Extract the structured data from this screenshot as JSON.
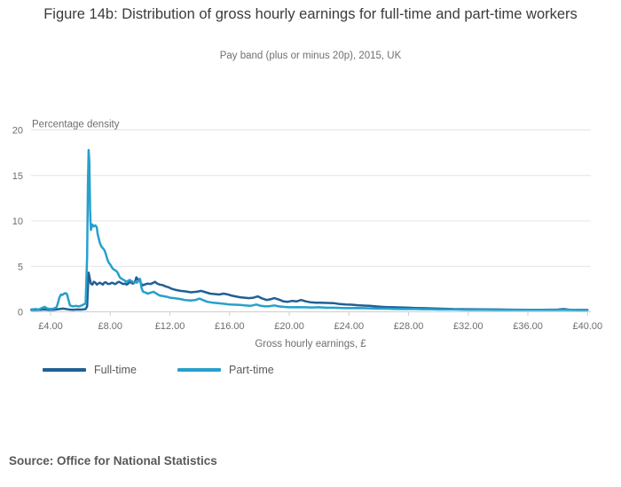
{
  "figure": {
    "title": "Figure 14b: Distribution of gross hourly earnings for full-time and part-time workers",
    "subtitle": "Pay band (plus or minus 20p), 2015, UK",
    "source": "Source: Office for National Statistics"
  },
  "chart_data": {
    "type": "line",
    "title": "Figure 14b: Distribution of gross hourly earnings for full-time and part-time workers",
    "subtitle": "Pay band (plus or minus 20p), 2015, UK",
    "xlabel": "Gross hourly earnings, £",
    "ylabel": "Percentage density",
    "xlim": [
      2.69,
      40.22
    ],
    "ylim": [
      0,
      20
    ],
    "grid": true,
    "legend_position": "bottom-left",
    "xticks": [
      4,
      8,
      12,
      16,
      20,
      24,
      28,
      32,
      36,
      40
    ],
    "xtick_labels": [
      "£4.00",
      "£8.00",
      "£12.00",
      "£16.00",
      "£20.00",
      "£24.00",
      "£28.00",
      "£32.00",
      "£36.00",
      "£40.00"
    ],
    "yticks": [
      0,
      5,
      10,
      15,
      20
    ],
    "colors": {
      "grid": "#e4e4e4",
      "axis": "#cfcfcf",
      "tick_text": "#6e6e6e",
      "axis_title_text": "#6e6e6e"
    },
    "series": [
      {
        "name": "Full-time",
        "color": "#206095",
        "points": [
          [
            2.7,
            0.2
          ],
          [
            3.0,
            0.2
          ],
          [
            3.3,
            0.22
          ],
          [
            3.6,
            0.25
          ],
          [
            3.9,
            0.2
          ],
          [
            4.2,
            0.22
          ],
          [
            4.5,
            0.28
          ],
          [
            4.8,
            0.35
          ],
          [
            5.0,
            0.32
          ],
          [
            5.2,
            0.25
          ],
          [
            5.5,
            0.22
          ],
          [
            5.8,
            0.25
          ],
          [
            6.0,
            0.24
          ],
          [
            6.2,
            0.26
          ],
          [
            6.35,
            0.3
          ],
          [
            6.45,
            0.6
          ],
          [
            6.5,
            2.6
          ],
          [
            6.55,
            4.3
          ],
          [
            6.6,
            3.9
          ],
          [
            6.7,
            3.1
          ],
          [
            6.8,
            3.0
          ],
          [
            6.9,
            3.3
          ],
          [
            7.0,
            3.2
          ],
          [
            7.1,
            3.0
          ],
          [
            7.2,
            3.1
          ],
          [
            7.3,
            3.2
          ],
          [
            7.4,
            3.1
          ],
          [
            7.5,
            3.0
          ],
          [
            7.6,
            3.2
          ],
          [
            7.7,
            3.25
          ],
          [
            7.8,
            3.1
          ],
          [
            7.9,
            3.05
          ],
          [
            8.0,
            3.1
          ],
          [
            8.1,
            3.2
          ],
          [
            8.2,
            3.15
          ],
          [
            8.3,
            3.05
          ],
          [
            8.4,
            3.1
          ],
          [
            8.5,
            3.25
          ],
          [
            8.6,
            3.3
          ],
          [
            8.7,
            3.2
          ],
          [
            8.8,
            3.1
          ],
          [
            8.9,
            3.05
          ],
          [
            9.0,
            3.1
          ],
          [
            9.1,
            3.0
          ],
          [
            9.2,
            3.1
          ],
          [
            9.3,
            3.3
          ],
          [
            9.4,
            3.2
          ],
          [
            9.5,
            3.1
          ],
          [
            9.6,
            3.15
          ],
          [
            9.7,
            3.5
          ],
          [
            9.75,
            3.8
          ],
          [
            9.85,
            3.5
          ],
          [
            9.95,
            3.6
          ],
          [
            10.05,
            3.2
          ],
          [
            10.15,
            2.9
          ],
          [
            10.3,
            3.0
          ],
          [
            10.5,
            3.1
          ],
          [
            10.7,
            3.05
          ],
          [
            10.9,
            3.2
          ],
          [
            11.0,
            3.3
          ],
          [
            11.1,
            3.15
          ],
          [
            11.3,
            3.0
          ],
          [
            11.5,
            2.95
          ],
          [
            11.7,
            2.8
          ],
          [
            11.9,
            2.7
          ],
          [
            12.1,
            2.55
          ],
          [
            12.4,
            2.4
          ],
          [
            12.7,
            2.3
          ],
          [
            13.0,
            2.25
          ],
          [
            13.4,
            2.15
          ],
          [
            13.8,
            2.2
          ],
          [
            14.1,
            2.3
          ],
          [
            14.4,
            2.15
          ],
          [
            14.7,
            2.0
          ],
          [
            15.0,
            1.95
          ],
          [
            15.3,
            1.9
          ],
          [
            15.6,
            2.0
          ],
          [
            15.9,
            1.9
          ],
          [
            16.1,
            1.8
          ],
          [
            16.4,
            1.7
          ],
          [
            16.7,
            1.6
          ],
          [
            17.0,
            1.55
          ],
          [
            17.3,
            1.5
          ],
          [
            17.6,
            1.55
          ],
          [
            17.9,
            1.7
          ],
          [
            18.2,
            1.45
          ],
          [
            18.5,
            1.3
          ],
          [
            18.8,
            1.4
          ],
          [
            19.0,
            1.5
          ],
          [
            19.3,
            1.35
          ],
          [
            19.6,
            1.15
          ],
          [
            19.9,
            1.1
          ],
          [
            20.2,
            1.2
          ],
          [
            20.5,
            1.15
          ],
          [
            20.8,
            1.3
          ],
          [
            21.1,
            1.15
          ],
          [
            21.4,
            1.05
          ],
          [
            21.8,
            1.0
          ],
          [
            22.1,
            1.0
          ],
          [
            22.5,
            0.98
          ],
          [
            23.0,
            0.95
          ],
          [
            23.4,
            0.85
          ],
          [
            23.8,
            0.8
          ],
          [
            24.2,
            0.78
          ],
          [
            24.6,
            0.72
          ],
          [
            25.0,
            0.68
          ],
          [
            25.4,
            0.65
          ],
          [
            25.8,
            0.6
          ],
          [
            26.2,
            0.55
          ],
          [
            26.6,
            0.52
          ],
          [
            27.0,
            0.5
          ],
          [
            27.5,
            0.48
          ],
          [
            28.0,
            0.45
          ],
          [
            28.5,
            0.42
          ],
          [
            29.0,
            0.4
          ],
          [
            29.5,
            0.38
          ],
          [
            30.0,
            0.35
          ],
          [
            30.5,
            0.33
          ],
          [
            31.0,
            0.3
          ],
          [
            32.0,
            0.28
          ],
          [
            33.0,
            0.26
          ],
          [
            34.0,
            0.25
          ],
          [
            35.0,
            0.23
          ],
          [
            36.0,
            0.22
          ],
          [
            37.0,
            0.22
          ],
          [
            38.0,
            0.24
          ],
          [
            38.4,
            0.3
          ],
          [
            38.8,
            0.22
          ],
          [
            39.4,
            0.2
          ],
          [
            40.0,
            0.2
          ]
        ]
      },
      {
        "name": "Part-time",
        "color": "#27a0cc",
        "points": [
          [
            2.7,
            0.25
          ],
          [
            3.0,
            0.3
          ],
          [
            3.2,
            0.25
          ],
          [
            3.4,
            0.4
          ],
          [
            3.6,
            0.55
          ],
          [
            3.8,
            0.35
          ],
          [
            4.0,
            0.3
          ],
          [
            4.2,
            0.35
          ],
          [
            4.4,
            0.5
          ],
          [
            4.5,
            1.0
          ],
          [
            4.6,
            1.6
          ],
          [
            4.7,
            1.9
          ],
          [
            4.8,
            1.85
          ],
          [
            4.9,
            2.0
          ],
          [
            5.0,
            2.05
          ],
          [
            5.1,
            1.95
          ],
          [
            5.2,
            1.3
          ],
          [
            5.3,
            0.7
          ],
          [
            5.5,
            0.6
          ],
          [
            5.7,
            0.65
          ],
          [
            5.9,
            0.6
          ],
          [
            6.1,
            0.7
          ],
          [
            6.25,
            0.85
          ],
          [
            6.35,
            0.9
          ],
          [
            6.45,
            6.0
          ],
          [
            6.5,
            14.0
          ],
          [
            6.55,
            17.8
          ],
          [
            6.6,
            16.5
          ],
          [
            6.65,
            11.0
          ],
          [
            6.7,
            9.0
          ],
          [
            6.8,
            9.6
          ],
          [
            6.9,
            9.4
          ],
          [
            7.0,
            9.5
          ],
          [
            7.1,
            9.3
          ],
          [
            7.15,
            8.6
          ],
          [
            7.3,
            7.6
          ],
          [
            7.4,
            7.2
          ],
          [
            7.5,
            7.0
          ],
          [
            7.6,
            6.8
          ],
          [
            7.7,
            6.4
          ],
          [
            7.8,
            5.8
          ],
          [
            7.9,
            5.4
          ],
          [
            8.0,
            5.2
          ],
          [
            8.1,
            4.9
          ],
          [
            8.2,
            4.7
          ],
          [
            8.3,
            4.6
          ],
          [
            8.4,
            4.5
          ],
          [
            8.5,
            4.3
          ],
          [
            8.6,
            3.9
          ],
          [
            8.7,
            3.7
          ],
          [
            8.8,
            3.6
          ],
          [
            9.0,
            3.4
          ],
          [
            9.1,
            3.3
          ],
          [
            9.2,
            3.4
          ],
          [
            9.3,
            3.5
          ],
          [
            9.4,
            3.4
          ],
          [
            9.5,
            3.3
          ],
          [
            9.6,
            3.2
          ],
          [
            9.7,
            3.3
          ],
          [
            9.8,
            3.2
          ],
          [
            9.9,
            3.4
          ],
          [
            10.0,
            3.6
          ],
          [
            10.05,
            3.1
          ],
          [
            10.1,
            2.6
          ],
          [
            10.2,
            2.2
          ],
          [
            10.4,
            2.1
          ],
          [
            10.5,
            2.0
          ],
          [
            10.7,
            2.1
          ],
          [
            10.9,
            2.2
          ],
          [
            11.1,
            2.0
          ],
          [
            11.3,
            1.8
          ],
          [
            11.5,
            1.75
          ],
          [
            11.8,
            1.65
          ],
          [
            12.0,
            1.55
          ],
          [
            12.3,
            1.5
          ],
          [
            12.7,
            1.4
          ],
          [
            13.0,
            1.3
          ],
          [
            13.4,
            1.25
          ],
          [
            13.7,
            1.3
          ],
          [
            14.0,
            1.45
          ],
          [
            14.2,
            1.3
          ],
          [
            14.5,
            1.1
          ],
          [
            14.9,
            1.0
          ],
          [
            15.2,
            0.95
          ],
          [
            15.5,
            0.9
          ],
          [
            15.8,
            0.85
          ],
          [
            16.0,
            0.8
          ],
          [
            16.4,
            0.78
          ],
          [
            16.7,
            0.75
          ],
          [
            17.0,
            0.7
          ],
          [
            17.4,
            0.65
          ],
          [
            17.8,
            0.8
          ],
          [
            18.1,
            0.65
          ],
          [
            18.4,
            0.6
          ],
          [
            18.7,
            0.62
          ],
          [
            19.0,
            0.7
          ],
          [
            19.3,
            0.6
          ],
          [
            19.6,
            0.55
          ],
          [
            20.0,
            0.5
          ],
          [
            20.5,
            0.52
          ],
          [
            21.0,
            0.5
          ],
          [
            21.5,
            0.48
          ],
          [
            22.0,
            0.5
          ],
          [
            22.5,
            0.45
          ],
          [
            23.0,
            0.45
          ],
          [
            23.5,
            0.42
          ],
          [
            24.0,
            0.4
          ],
          [
            24.5,
            0.42
          ],
          [
            25.0,
            0.4
          ],
          [
            25.5,
            0.38
          ],
          [
            26.0,
            0.35
          ],
          [
            26.5,
            0.35
          ],
          [
            27.0,
            0.32
          ],
          [
            27.5,
            0.3
          ],
          [
            28.0,
            0.3
          ],
          [
            28.5,
            0.3
          ],
          [
            29.0,
            0.28
          ],
          [
            29.5,
            0.28
          ],
          [
            30.0,
            0.25
          ],
          [
            31.0,
            0.25
          ],
          [
            32.0,
            0.22
          ],
          [
            33.0,
            0.22
          ],
          [
            34.0,
            0.2
          ],
          [
            35.0,
            0.2
          ],
          [
            36.0,
            0.2
          ],
          [
            37.0,
            0.2
          ],
          [
            38.0,
            0.2
          ],
          [
            39.0,
            0.2
          ],
          [
            40.0,
            0.2
          ]
        ]
      }
    ]
  }
}
